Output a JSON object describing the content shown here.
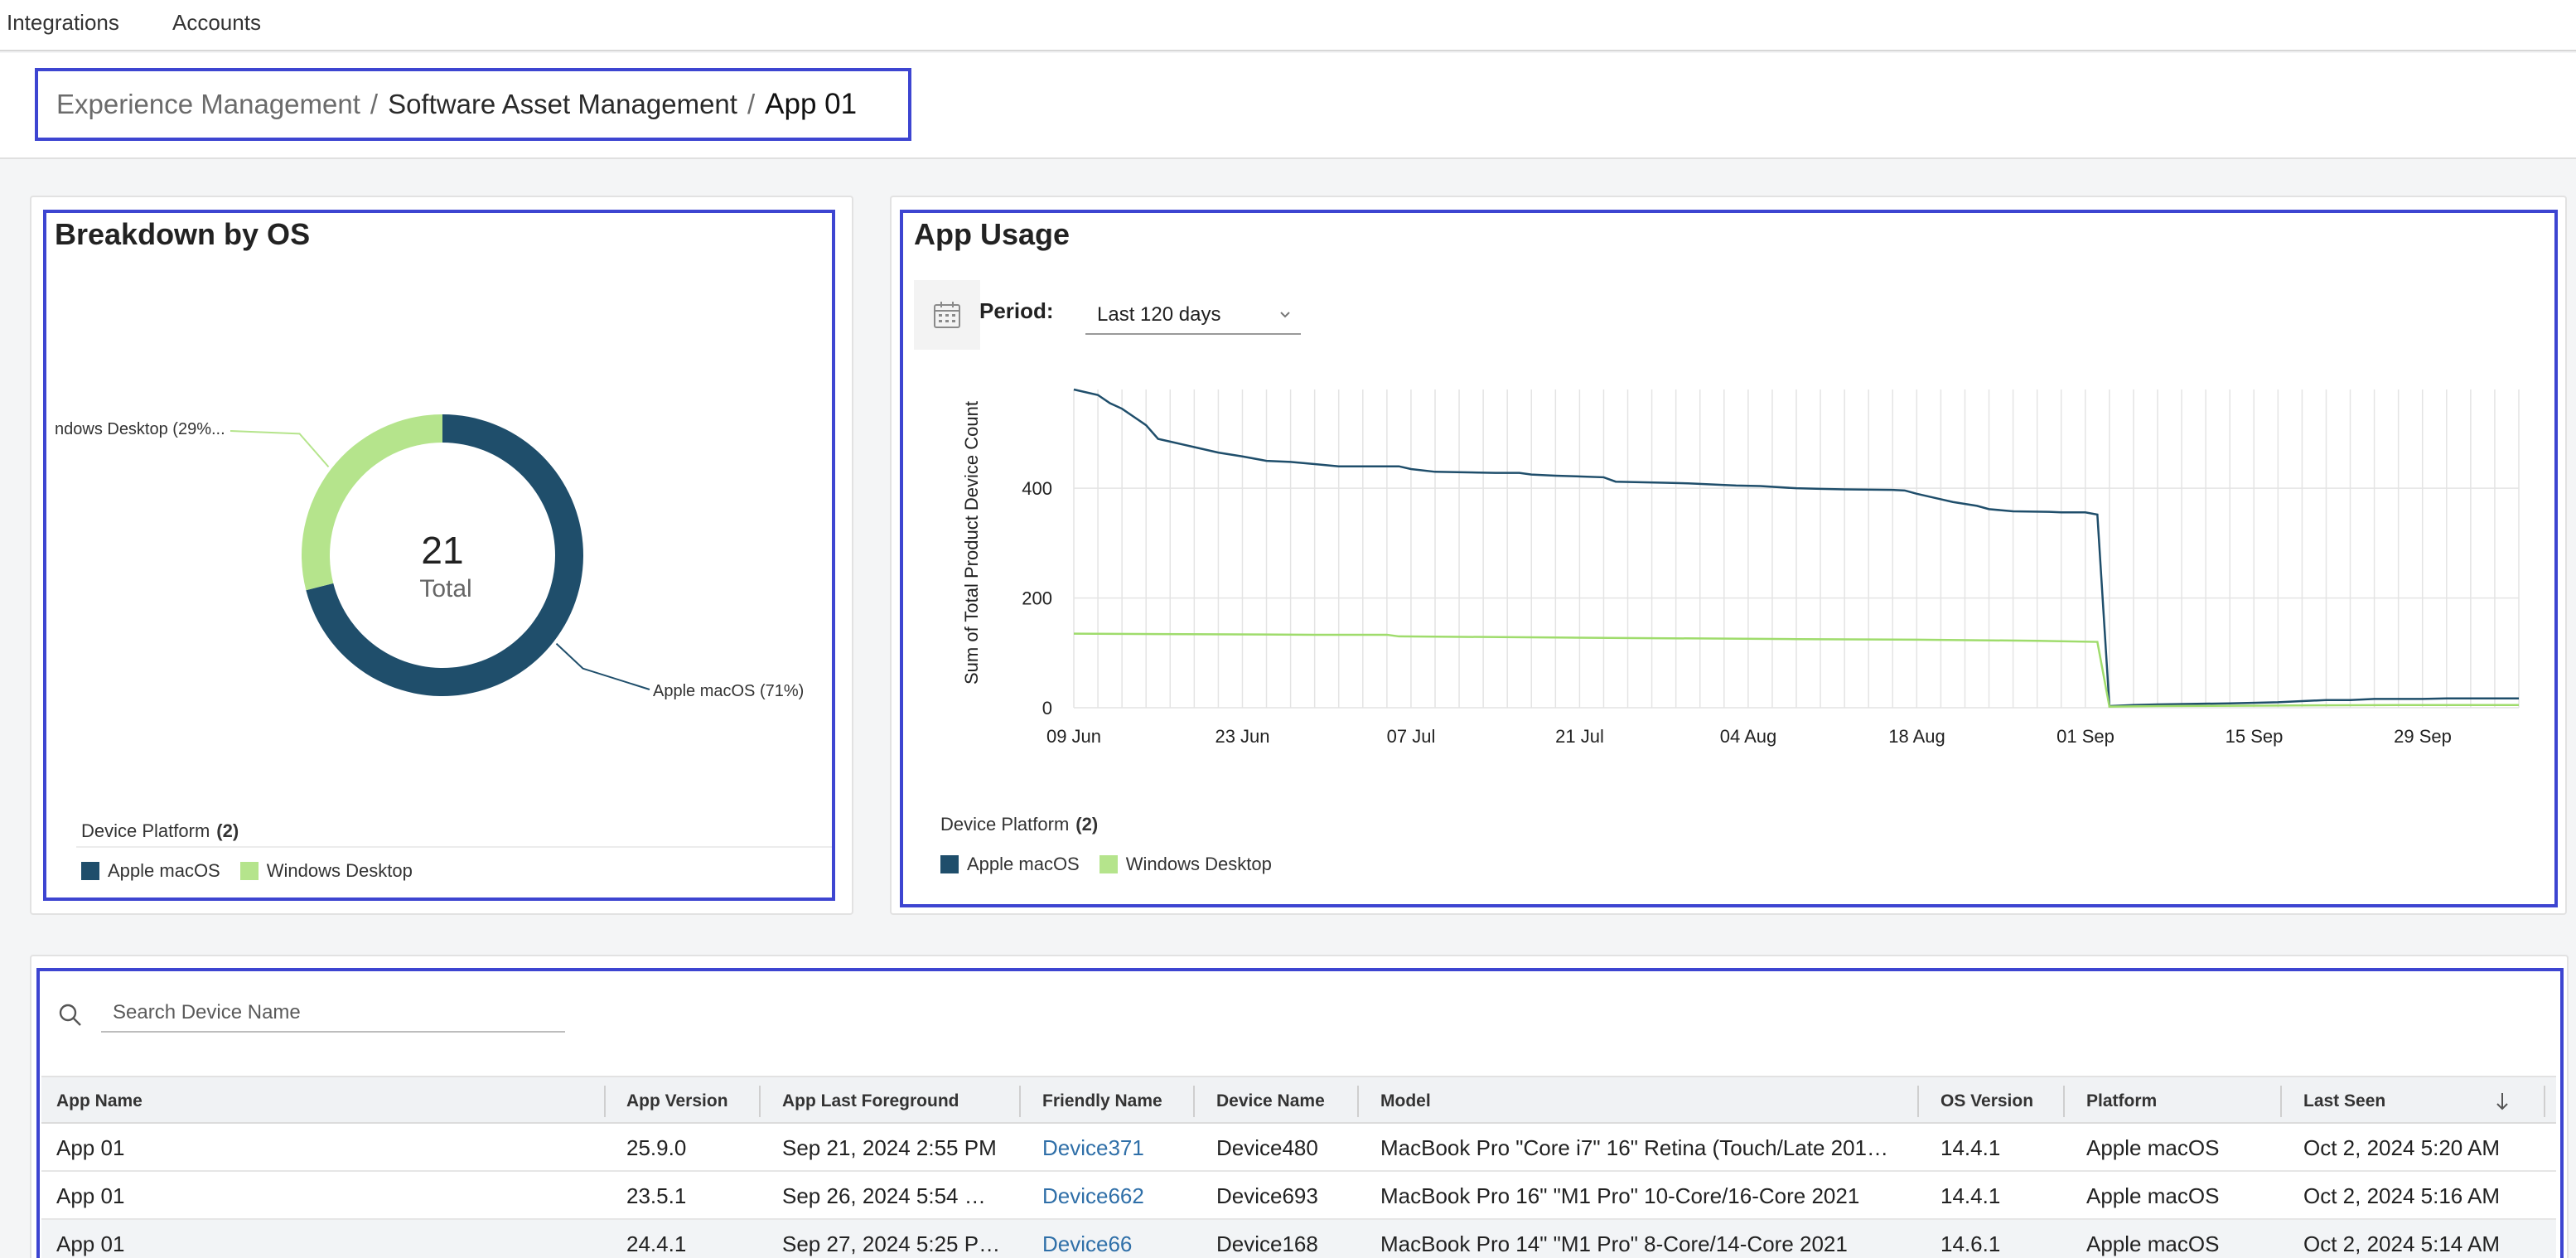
{
  "topnav": {
    "items": [
      "Integrations",
      "Accounts"
    ]
  },
  "breadcrumb": {
    "level1": "Experience Management",
    "level2": "Software Asset Management",
    "separator": "/",
    "current": "App 01"
  },
  "breakdown": {
    "title": "Breakdown by OS",
    "center_value": "21",
    "center_label": "Total",
    "label_windows": "ndows Desktop (29%...",
    "label_macos": "Apple macOS (71%)",
    "legend_header": "Device Platform",
    "legend_count": "(2)",
    "legend": [
      "Apple macOS",
      "Windows Desktop"
    ]
  },
  "usage": {
    "title": "App Usage",
    "period_label": "Period:",
    "period_value": "Last 120 days",
    "legend_header": "Device Platform",
    "legend_count": "(2)",
    "legend": [
      "Apple macOS",
      "Windows Desktop"
    ]
  },
  "colors": {
    "macos": "#1f4e6b",
    "windows": "#b5e48c",
    "accent": "#3d45d1",
    "link": "#2f6fa8"
  },
  "chart_data": [
    {
      "type": "pie",
      "slices": [
        {
          "label": "Apple macOS",
          "value": 71,
          "unit": "%"
        },
        {
          "label": "Windows Desktop",
          "value": 29,
          "unit": "%"
        }
      ]
    },
    {
      "type": "line",
      "ylabel": "Sum of Total Product Device Count",
      "ylim": [
        0,
        580
      ],
      "yticks": [
        0,
        200,
        400
      ],
      "xticks": [
        "09 Jun",
        "23 Jun",
        "07 Jul",
        "21 Jul",
        "04 Aug",
        "18 Aug",
        "01 Sep",
        "15 Sep",
        "29 Sep"
      ],
      "grid": true,
      "series": [
        {
          "name": "Apple macOS",
          "points": [
            [
              0,
              580
            ],
            [
              2,
              570
            ],
            [
              3,
              555
            ],
            [
              4,
              545
            ],
            [
              5,
              530
            ],
            [
              6,
              515
            ],
            [
              7,
              490
            ],
            [
              8,
              485
            ],
            [
              9,
              480
            ],
            [
              10,
              475
            ],
            [
              12,
              465
            ],
            [
              14,
              458
            ],
            [
              16,
              450
            ],
            [
              18,
              448
            ],
            [
              20,
              444
            ],
            [
              22,
              440
            ],
            [
              26,
              440
            ],
            [
              27,
              440
            ],
            [
              28,
              435
            ],
            [
              30,
              430
            ],
            [
              35,
              428
            ],
            [
              37,
              428
            ],
            [
              38,
              425
            ],
            [
              40,
              423
            ],
            [
              44,
              420
            ],
            [
              45,
              412
            ],
            [
              49,
              410
            ],
            [
              51,
              409
            ],
            [
              55,
              405
            ],
            [
              57,
              404
            ],
            [
              60,
              400
            ],
            [
              62,
              399
            ],
            [
              64,
              398
            ],
            [
              68,
              397
            ],
            [
              69,
              396
            ],
            [
              70,
              390
            ],
            [
              72,
              380
            ],
            [
              73,
              375
            ],
            [
              75,
              368
            ],
            [
              76,
              362
            ],
            [
              78,
              358
            ],
            [
              81,
              357
            ],
            [
              82,
              356
            ],
            [
              84,
              356
            ],
            [
              85,
              352
            ],
            [
              86,
              3
            ],
            [
              88,
              5
            ],
            [
              90,
              6
            ],
            [
              96,
              8
            ],
            [
              100,
              10
            ],
            [
              102,
              12
            ],
            [
              104,
              14
            ],
            [
              106,
              14
            ],
            [
              108,
              16
            ],
            [
              112,
              16
            ],
            [
              114,
              17
            ],
            [
              120,
              17
            ]
          ]
        },
        {
          "name": "Windows Desktop",
          "points": [
            [
              0,
              135
            ],
            [
              20,
              133
            ],
            [
              26,
              133
            ],
            [
              27,
              130
            ],
            [
              40,
              128
            ],
            [
              60,
              125
            ],
            [
              70,
              124
            ],
            [
              80,
              122
            ],
            [
              85,
              120
            ],
            [
              86,
              2
            ],
            [
              90,
              3
            ],
            [
              100,
              4
            ],
            [
              110,
              5
            ],
            [
              120,
              5
            ]
          ]
        }
      ]
    }
  ],
  "search": {
    "placeholder": "Search Device Name"
  },
  "table": {
    "columns": [
      "App Name",
      "App Version",
      "App Last Foreground",
      "Friendly Name",
      "Device Name",
      "Model",
      "OS Version",
      "Platform",
      "Last Seen"
    ],
    "rows": [
      [
        "App 01",
        "25.9.0",
        "Sep 21, 2024 2:55 PM",
        "Device371",
        "Device480",
        "MacBook Pro \"Core i7\" 16\" Retina (Touch/Late 201…",
        "14.4.1",
        "Apple macOS",
        "Oct 2, 2024 5:20 AM"
      ],
      [
        "App 01",
        "23.5.1",
        "Sep 26, 2024 5:54 …",
        "Device662",
        "Device693",
        "MacBook Pro 16\" \"M1 Pro\" 10-Core/16-Core 2021",
        "14.4.1",
        "Apple macOS",
        "Oct 2, 2024 5:16 AM"
      ],
      [
        "App 01",
        "24.4.1",
        "Sep 27, 2024 5:25 P…",
        "Device66",
        "Device168",
        "MacBook Pro 14\" \"M1 Pro\" 8-Core/14-Core 2021",
        "14.6.1",
        "Apple macOS",
        "Oct 2, 2024 5:14 AM"
      ]
    ]
  }
}
